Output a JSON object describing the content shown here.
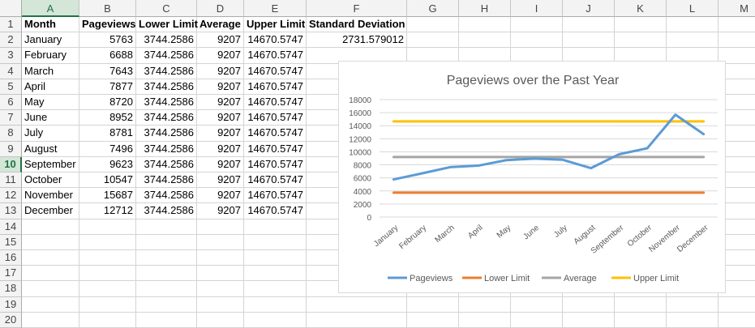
{
  "columns": [
    "A",
    "B",
    "C",
    "D",
    "E",
    "F",
    "G",
    "H",
    "I",
    "J",
    "K",
    "L",
    "M"
  ],
  "rows": [
    "1",
    "2",
    "3",
    "4",
    "5",
    "6",
    "7",
    "8",
    "9",
    "10",
    "11",
    "12",
    "13",
    "14",
    "15",
    "16",
    "17",
    "18",
    "19",
    "20"
  ],
  "headers": [
    "Month",
    "Pageviews",
    "Lower Limit",
    "Average",
    "Upper Limit",
    "Standard Deviation"
  ],
  "std_dev_value": "2731.579012",
  "table": [
    [
      "January",
      "5763",
      "3744.2586",
      "9207",
      "14670.5747"
    ],
    [
      "February",
      "6688",
      "3744.2586",
      "9207",
      "14670.5747"
    ],
    [
      "March",
      "7643",
      "3744.2586",
      "9207",
      "14670.5747"
    ],
    [
      "April",
      "7877",
      "3744.2586",
      "9207",
      "14670.5747"
    ],
    [
      "May",
      "8720",
      "3744.2586",
      "9207",
      "14670.5747"
    ],
    [
      "June",
      "8952",
      "3744.2586",
      "9207",
      "14670.5747"
    ],
    [
      "July",
      "8781",
      "3744.2586",
      "9207",
      "14670.5747"
    ],
    [
      "August",
      "7496",
      "3744.2586",
      "9207",
      "14670.5747"
    ],
    [
      "September",
      "9623",
      "3744.2586",
      "9207",
      "14670.5747"
    ],
    [
      "October",
      "10547",
      "3744.2586",
      "9207",
      "14670.5747"
    ],
    [
      "November",
      "15687",
      "3744.2586",
      "9207",
      "14670.5747"
    ],
    [
      "December",
      "12712",
      "3744.2586",
      "9207",
      "14670.5747"
    ]
  ],
  "chart_data": {
    "type": "line",
    "title": "Pageviews over the Past Year",
    "categories": [
      "January",
      "February",
      "March",
      "April",
      "May",
      "June",
      "July",
      "August",
      "September",
      "October",
      "November",
      "December"
    ],
    "series": [
      {
        "name": "Pageviews",
        "color": "#5b9bd5",
        "values": [
          5763,
          6688,
          7643,
          7877,
          8720,
          8952,
          8781,
          7496,
          9623,
          10547,
          15687,
          12712
        ]
      },
      {
        "name": "Lower Limit",
        "color": "#ed7d31",
        "values": [
          3744.2586,
          3744.2586,
          3744.2586,
          3744.2586,
          3744.2586,
          3744.2586,
          3744.2586,
          3744.2586,
          3744.2586,
          3744.2586,
          3744.2586,
          3744.2586
        ]
      },
      {
        "name": "Average",
        "color": "#a5a5a5",
        "values": [
          9207,
          9207,
          9207,
          9207,
          9207,
          9207,
          9207,
          9207,
          9207,
          9207,
          9207,
          9207
        ]
      },
      {
        "name": "Upper Limit",
        "color": "#ffc000",
        "values": [
          14670.5747,
          14670.5747,
          14670.5747,
          14670.5747,
          14670.5747,
          14670.5747,
          14670.5747,
          14670.5747,
          14670.5747,
          14670.5747,
          14670.5747,
          14670.5747
        ]
      }
    ],
    "ylim": [
      0,
      18000
    ],
    "yticks": [
      0,
      2000,
      4000,
      6000,
      8000,
      10000,
      12000,
      14000,
      16000,
      18000
    ],
    "grid": true,
    "legend_position": "bottom"
  }
}
